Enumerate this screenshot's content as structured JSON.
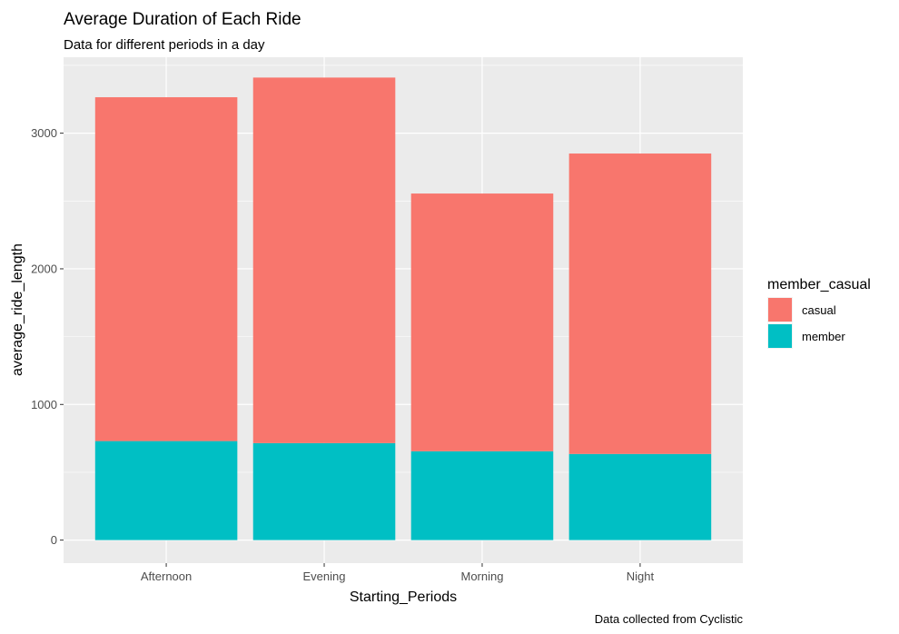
{
  "chart_data": {
    "type": "bar",
    "stacked": true,
    "title": "Average Duration of Each Ride",
    "subtitle": "Data for different periods in a day",
    "caption": "Data collected from Cyclistic",
    "xlabel": "Starting_Periods",
    "ylabel": "average_ride_length",
    "categories": [
      "Afternoon",
      "Evening",
      "Morning",
      "Night"
    ],
    "series": [
      {
        "name": "casual",
        "color": "#F8766D",
        "values": [
          2535,
          2695,
          1900,
          2215
        ]
      },
      {
        "name": "member",
        "color": "#00BFC4",
        "values": [
          730,
          715,
          655,
          635
        ]
      }
    ],
    "ylim": [
      -170,
      3560
    ],
    "yticks": [
      0,
      1000,
      2000,
      3000
    ],
    "grid": true,
    "legend": {
      "title": "member_casual",
      "position": "right"
    }
  }
}
